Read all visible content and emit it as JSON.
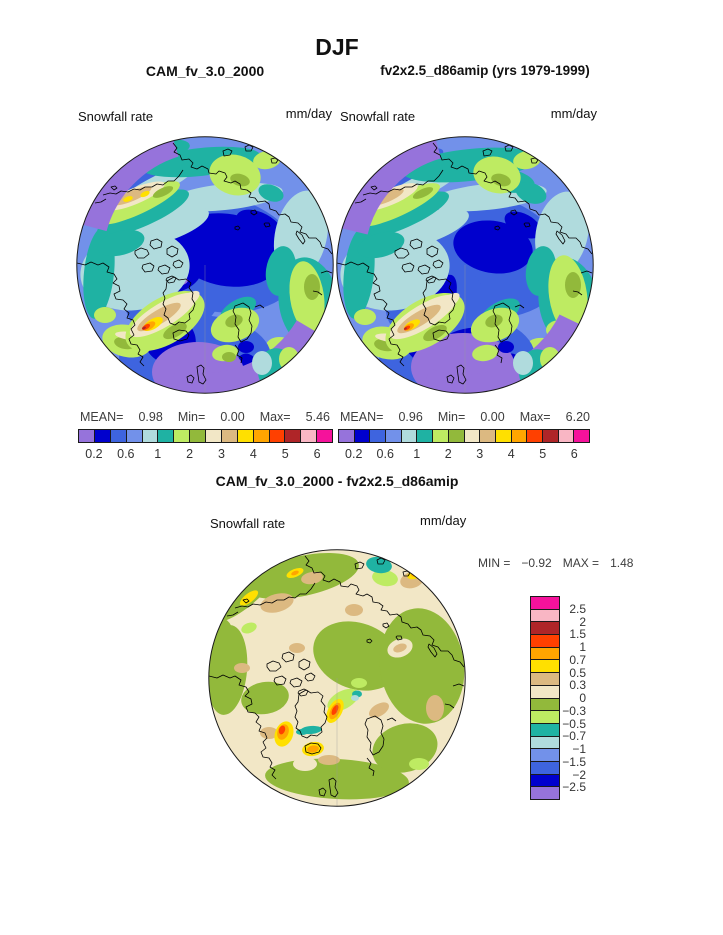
{
  "title": "DJF",
  "top_row": {
    "left": {
      "model": "CAM_fv_3.0_2000",
      "field": "Snowfall rate",
      "units": "mm/day",
      "stats": {
        "mean_label": "MEAN=",
        "mean": "0.98",
        "min_label": "Min=",
        "min": "0.00",
        "max_label": "Max=",
        "max": "5.46"
      },
      "ticks": [
        "0.2",
        "0.6",
        "1",
        "2",
        "3",
        "4",
        "5",
        "6"
      ]
    },
    "right": {
      "model": "fv2x2.5_d86amip (yrs 1979-1999)",
      "field": "Snowfall rate",
      "units": "mm/day",
      "stats": {
        "mean_label": "MEAN=",
        "mean": "0.96",
        "min_label": "Min=",
        "min": "0.00",
        "max_label": "Max=",
        "max": "6.20"
      },
      "ticks": [
        "0.2",
        "0.6",
        "1",
        "2",
        "3",
        "4",
        "5",
        "6"
      ]
    }
  },
  "diff": {
    "title": "CAM_fv_3.0_2000 - fv2x2.5_d86amip",
    "field": "Snowfall rate",
    "units": "mm/day",
    "stats": {
      "min_label": "MIN =",
      "min": "−0.92",
      "max_label": "MAX =",
      "max": "1.48"
    },
    "ticks": [
      "2.5",
      "2",
      "1.5",
      "1",
      "0.7",
      "0.5",
      "0.3",
      "0",
      "−0.3",
      "−0.5",
      "−0.7",
      "−1",
      "−1.5",
      "−2",
      "−2.5"
    ]
  },
  "palette": [
    "#9673DB",
    "#0000CD",
    "#3E64DF",
    "#7291EA",
    "#B0DBDD",
    "#1FB2A3",
    "#BEEB62",
    "#92B93B",
    "#F2E7C6",
    "#DCB981",
    "#FFE000",
    "#FFA500",
    "#FF4000",
    "#AF2528",
    "#F9B6C4",
    "#F5129B"
  ],
  "chart_data": {
    "type": "heatmap",
    "figure_title": "DJF",
    "variable": "Snowfall rate",
    "units": "mm/day",
    "projection": "north polar stereographic",
    "panels": [
      {
        "title": "CAM_fv_3.0_2000",
        "mean": 0.98,
        "min": 0.0,
        "max": 5.46,
        "contour_levels": [
          0.2,
          0.4,
          0.6,
          0.8,
          1,
          1.5,
          2,
          2.5,
          3,
          3.5,
          4,
          4.5,
          5,
          5.5,
          6
        ],
        "labeled_ticks": [
          0.2,
          0.6,
          1,
          2,
          3,
          4,
          5,
          6
        ],
        "colorbar": "horizontal, below panel"
      },
      {
        "title": "fv2x2.5_d86amip (yrs 1979-1999)",
        "mean": 0.96,
        "min": 0.0,
        "max": 6.2,
        "contour_levels": [
          0.2,
          0.4,
          0.6,
          0.8,
          1,
          1.5,
          2,
          2.5,
          3,
          3.5,
          4,
          4.5,
          5,
          5.5,
          6
        ],
        "labeled_ticks": [
          0.2,
          0.6,
          1,
          2,
          3,
          4,
          5,
          6
        ],
        "colorbar": "horizontal, below panel"
      },
      {
        "title": "CAM_fv_3.0_2000 - fv2x2.5_d86amip",
        "min": -0.92,
        "max": 1.48,
        "contour_levels": [
          -2.5,
          -2,
          -1.5,
          -1,
          -0.7,
          -0.5,
          -0.3,
          0,
          0.3,
          0.5,
          0.7,
          1,
          1.5,
          2,
          2.5
        ],
        "labeled_ticks": [
          2.5,
          2,
          1.5,
          1,
          0.7,
          0.5,
          0.3,
          0,
          -0.3,
          -0.5,
          -0.7,
          -1,
          -1.5,
          -2,
          -2.5
        ],
        "colorbar": "vertical, right of panel"
      }
    ],
    "palette_low_to_high": [
      "#9673DB",
      "#0000CD",
      "#3E64DF",
      "#7291EA",
      "#B0DBDD",
      "#1FB2A3",
      "#BEEB62",
      "#92B93B",
      "#F2E7C6",
      "#DCB981",
      "#FFE000",
      "#FFA500",
      "#FF4000",
      "#AF2528",
      "#F9B6C4",
      "#F5129B"
    ]
  }
}
